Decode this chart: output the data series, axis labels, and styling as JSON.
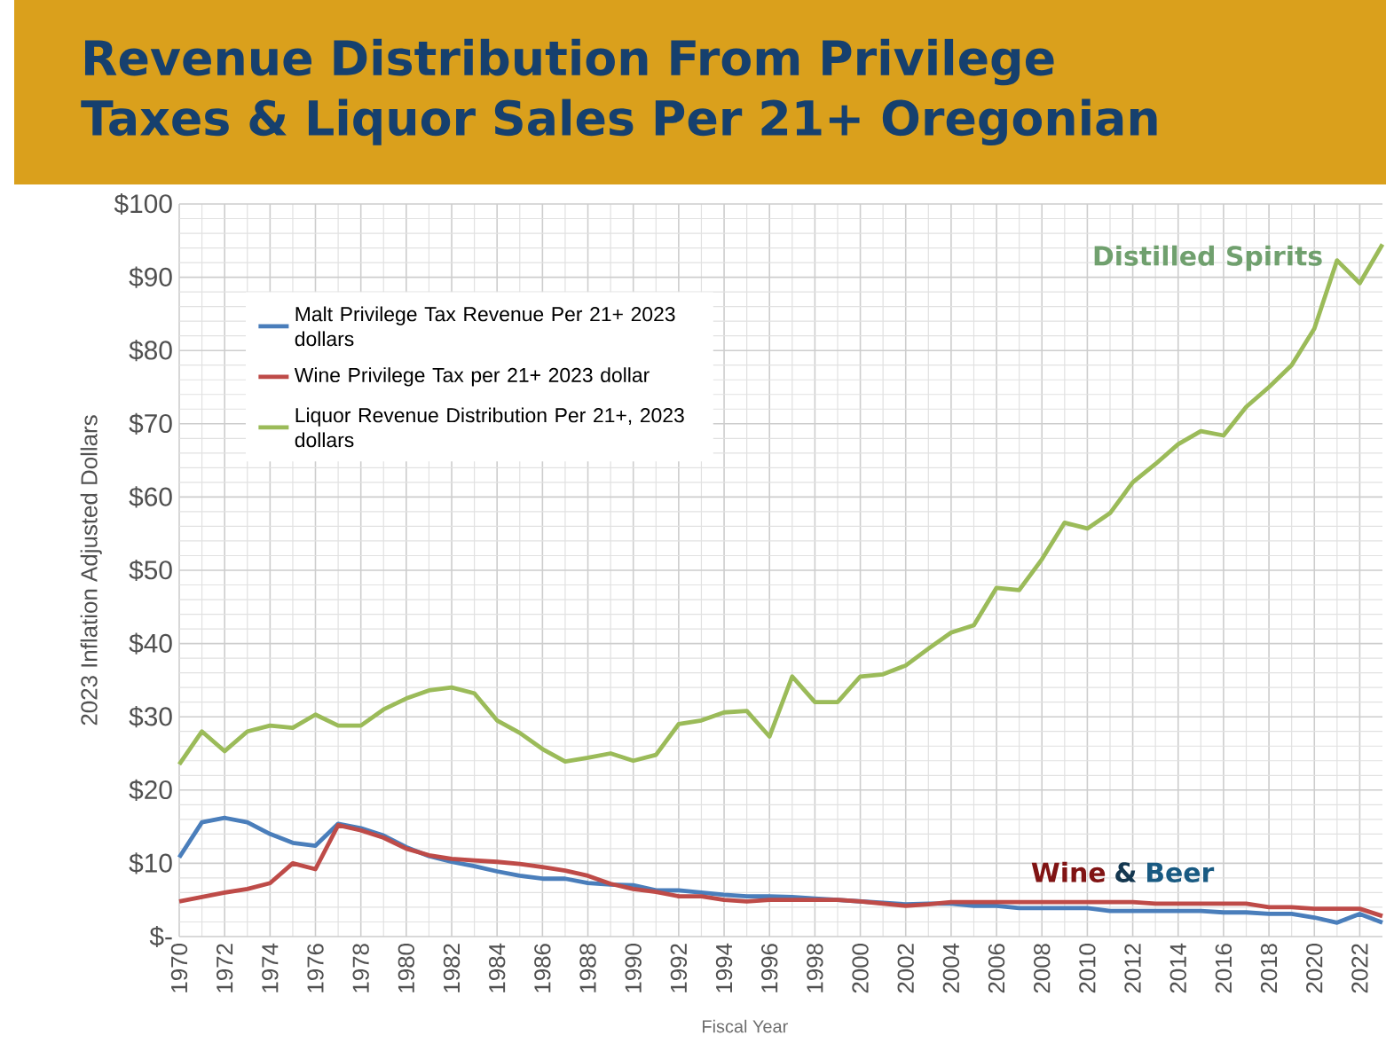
{
  "chart_data": {
    "type": "line",
    "title": "Revenue Distribution From Privilege Taxes & Liquor Sales Per 21+ Oregonian",
    "xlabel": "Fiscal Year",
    "ylabel": "2023 Inflation Adjusted Dollars",
    "x": [
      1970,
      1971,
      1972,
      1973,
      1974,
      1975,
      1976,
      1977,
      1978,
      1979,
      1980,
      1981,
      1982,
      1983,
      1984,
      1985,
      1986,
      1987,
      1988,
      1989,
      1990,
      1991,
      1992,
      1993,
      1994,
      1995,
      1996,
      1997,
      1998,
      1999,
      2000,
      2001,
      2002,
      2003,
      2004,
      2005,
      2006,
      2007,
      2008,
      2009,
      2010,
      2011,
      2012,
      2013,
      2014,
      2015,
      2016,
      2017,
      2018,
      2019,
      2020,
      2021,
      2022,
      2023
    ],
    "series": [
      {
        "name": "Malt Privilege Tax Revenue Per 21+ 2023 dollars",
        "color": "#4a7ebb",
        "values": [
          10.8,
          15.6,
          16.2,
          15.6,
          14,
          12.8,
          12.4,
          15.4,
          14.8,
          13.8,
          12.2,
          11,
          10.2,
          9.6,
          8.9,
          8.3,
          7.9,
          7.9,
          7.3,
          7.1,
          7.0,
          6.3,
          6.3,
          6.0,
          5.7,
          5.5,
          5.5,
          5.4,
          5.2,
          5.0,
          4.8,
          4.6,
          4.4,
          4.5,
          4.5,
          4.2,
          4.2,
          3.9,
          3.9,
          3.9,
          3.9,
          3.5,
          3.5,
          3.5,
          3.5,
          3.5,
          3.3,
          3.3,
          3.1,
          3.1,
          2.6,
          1.9,
          3.1,
          1.9
        ]
      },
      {
        "name": "Wine Privilege Tax per 21+ 2023 dollar",
        "color": "#be4b48",
        "values": [
          4.8,
          5.4,
          6.0,
          6.5,
          7.3,
          10,
          9.2,
          15.2,
          14.5,
          13.5,
          12.0,
          11.1,
          10.6,
          10.4,
          10.2,
          9.9,
          9.5,
          9.0,
          8.3,
          7.2,
          6.5,
          6.1,
          5.5,
          5.5,
          5.0,
          4.8,
          5.0,
          5.0,
          5.0,
          5.0,
          4.8,
          4.5,
          4.2,
          4.4,
          4.7,
          4.7,
          4.7,
          4.7,
          4.7,
          4.7,
          4.7,
          4.7,
          4.7,
          4.5,
          4.5,
          4.5,
          4.5,
          4.5,
          4.0,
          4.0,
          3.8,
          3.8,
          3.8,
          2.8
        ]
      },
      {
        "name": "Liquor Revenue Distribution Per 21+, 2023 dollars",
        "color": "#9bbb59",
        "values": [
          23.5,
          28,
          25.3,
          28,
          28.8,
          28.5,
          30.3,
          28.8,
          28.8,
          31,
          32.5,
          33.6,
          34,
          33.2,
          29.5,
          27.8,
          25.6,
          23.9,
          24.4,
          25.0,
          24.0,
          24.8,
          29,
          29.5,
          30.6,
          30.8,
          27.3,
          35.5,
          32,
          32,
          35.5,
          35.8,
          37,
          39.3,
          41.5,
          42.5,
          47.6,
          47.3,
          51.5,
          56.5,
          55.7,
          57.8,
          62,
          64.5,
          67.2,
          69,
          68.4,
          72.3,
          75,
          78,
          83,
          92.3,
          89.2,
          94.5
        ]
      }
    ],
    "xlim": [
      1970,
      2023
    ],
    "xticks": [
      1970,
      1972,
      1974,
      1976,
      1978,
      1980,
      1982,
      1984,
      1986,
      1988,
      1990,
      1992,
      1994,
      1996,
      1998,
      2000,
      2002,
      2004,
      2006,
      2008,
      2010,
      2012,
      2014,
      2016,
      2018,
      2020,
      2022
    ],
    "ylim": [
      0,
      100
    ],
    "yticks": [
      {
        "value": 0,
        "label": "$-"
      },
      {
        "value": 10,
        "label": "$10"
      },
      {
        "value": 20,
        "label": "$20"
      },
      {
        "value": 30,
        "label": "$30"
      },
      {
        "value": 40,
        "label": "$40"
      },
      {
        "value": 50,
        "label": "$50"
      },
      {
        "value": 60,
        "label": "$60"
      },
      {
        "value": 70,
        "label": "$70"
      },
      {
        "value": 80,
        "label": "$80"
      },
      {
        "value": 90,
        "label": "$90"
      },
      {
        "value": 100,
        "label": "$100"
      }
    ],
    "annotations": [
      "Distilled Spirits",
      "Wine",
      "&",
      "Beer"
    ],
    "grid": true,
    "legend": "top left",
    "marker": "none",
    "line_style": "solid"
  }
}
